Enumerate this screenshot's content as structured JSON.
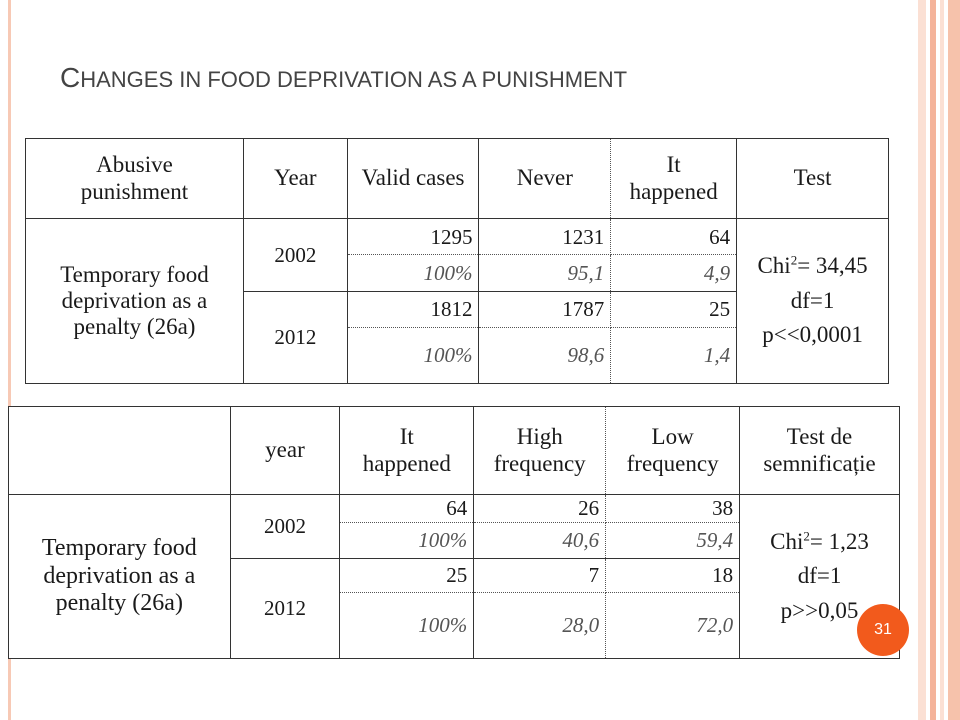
{
  "title": {
    "first": "C",
    "rest": "HANGES IN FOOD DEPRIVATION AS A PUNISHMENT"
  },
  "table1": {
    "headers": [
      "Abusive punishment",
      "Year",
      "Valid cases",
      "Never",
      "It happened",
      "Test"
    ],
    "row_label": "Temporary food deprivation as a penalty  (26a)",
    "rows": [
      {
        "year": "2002",
        "counts": [
          "1295",
          "1231",
          "64"
        ],
        "percents": [
          "100%",
          "95,1",
          "4,9"
        ]
      },
      {
        "year": "2012",
        "counts": [
          "1812",
          "1787",
          "25"
        ],
        "percents": [
          "100%",
          "98,6",
          "1,4"
        ]
      }
    ],
    "test": {
      "chi_prefix": "Chi",
      "chi_sup": "2",
      "chi_value": "= 34,45",
      "df": "df=1",
      "p": "p<<0,0001"
    }
  },
  "table2": {
    "headers": [
      "",
      "year",
      "It happened",
      "High frequency",
      "Low frequency",
      "Test de semnificație"
    ],
    "row_label": "Temporary food deprivation as a penalty (26a)",
    "rows": [
      {
        "year": "2002",
        "counts": [
          "64",
          "26",
          "38"
        ],
        "percents": [
          "100%",
          "40,6",
          "59,4"
        ]
      },
      {
        "year": "2012",
        "counts": [
          "25",
          "7",
          "18"
        ],
        "percents": [
          "100%",
          "28,0",
          "72,0"
        ]
      }
    ],
    "test": {
      "chi_prefix": "Chi",
      "chi_sup": "2",
      "chi_value": "= 1,23",
      "df": "df=1",
      "p": "p>>0,05"
    }
  },
  "page_number": "31",
  "colors": {
    "accent": "#f25a1c",
    "decoration": "#f4b39a",
    "title": "#444444"
  }
}
